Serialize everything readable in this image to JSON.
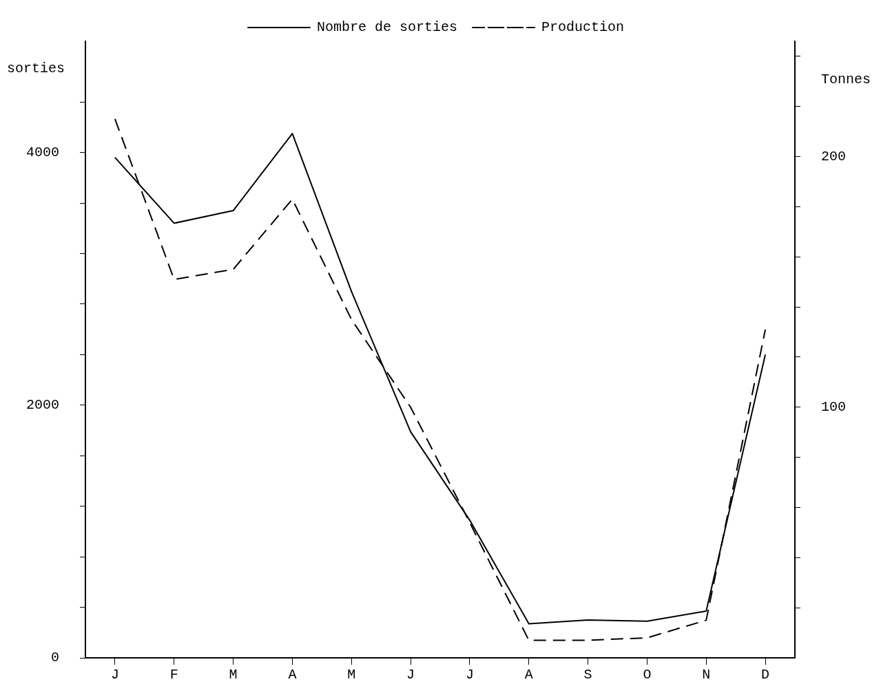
{
  "chart_data": {
    "type": "line",
    "ylabel": "sorties",
    "y2label": "Tonnes",
    "categories": [
      "J",
      "F",
      "M",
      "A",
      "M",
      "J",
      "J",
      "A",
      "S",
      "O",
      "N",
      "D"
    ],
    "series": [
      {
        "name": "Nombre de sorties",
        "color": "#000000",
        "line_style": "solid",
        "values": [
          3960,
          3440,
          3540,
          4150,
          2900,
          1790,
          1090,
          270,
          300,
          290,
          370,
          2400
        ]
      },
      {
        "name": "Production",
        "color": "#000000",
        "line_style": "dashed",
        "axis": "y2",
        "values": [
          215,
          151,
          155,
          183,
          135,
          100,
          54,
          7,
          7,
          8,
          15,
          131
        ]
      }
    ],
    "ylim": [
      0,
      4880
    ],
    "yticks": [
      {
        "value": 0,
        "label": "0"
      },
      {
        "value": 400,
        "label": null
      },
      {
        "value": 800,
        "label": null
      },
      {
        "value": 1200,
        "label": null
      },
      {
        "value": 1600,
        "label": null
      },
      {
        "value": 2000,
        "label": "2000"
      },
      {
        "value": 2400,
        "label": null
      },
      {
        "value": 2800,
        "label": null
      },
      {
        "value": 3200,
        "label": null
      },
      {
        "value": 3600,
        "label": null
      },
      {
        "value": 4000,
        "label": "4000"
      },
      {
        "value": 4400,
        "label": null
      }
    ],
    "y2lim": [
      0,
      246
    ],
    "y2ticks": [
      {
        "value": 20,
        "label": null
      },
      {
        "value": 40,
        "label": null
      },
      {
        "value": 60,
        "label": null
      },
      {
        "value": 80,
        "label": null
      },
      {
        "value": 100,
        "label": "100"
      },
      {
        "value": 120,
        "label": null
      },
      {
        "value": 140,
        "label": null
      },
      {
        "value": 160,
        "label": null
      },
      {
        "value": 180,
        "label": null
      },
      {
        "value": 200,
        "label": "200"
      },
      {
        "value": 220,
        "label": null
      },
      {
        "value": 240,
        "label": null
      }
    ],
    "grid": false,
    "legend": "top"
  }
}
